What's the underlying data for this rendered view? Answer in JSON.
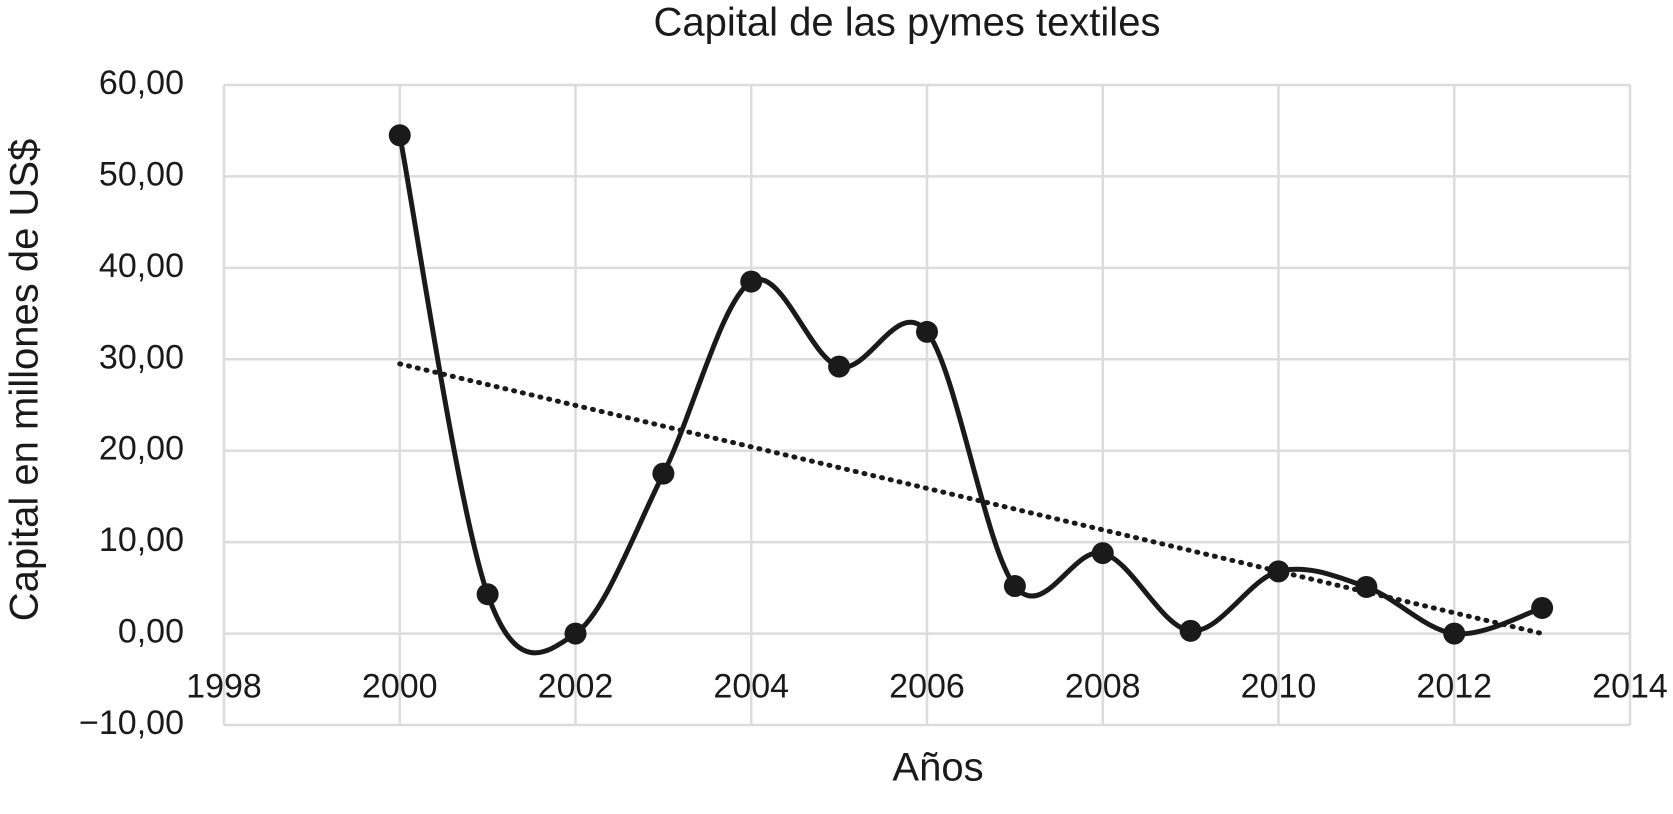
{
  "chart_data": {
    "type": "line",
    "title": "Capital de las pymes textiles",
    "x_label": "Años",
    "y_label": "Capital en millones de US$",
    "x": [
      2000,
      2001,
      2002,
      2003,
      2004,
      2005,
      2006,
      2007,
      2008,
      2009,
      2010,
      2011,
      2012,
      2013
    ],
    "series": [
      {
        "color": "#1a1a1a",
        "values": [
          54.5,
          4.3,
          0,
          17.5,
          38.5,
          29.2,
          33,
          5.2,
          8.8,
          0.3,
          6.8,
          5.1,
          0,
          2.8
        ]
      }
    ],
    "trendline": {
      "x": [
        2000,
        2013
      ],
      "values": [
        29.5,
        0
      ],
      "color": "#1a1a1a"
    },
    "smooth": true,
    "xlim": [
      1998,
      2014
    ],
    "xticks": [
      1998,
      2000,
      2002,
      2004,
      2006,
      2008,
      2010,
      2012,
      2014
    ],
    "ylim": [
      -10,
      60
    ],
    "yticks": [
      {
        "value": -10,
        "label": "−10,00"
      },
      {
        "value": 0,
        "label": "0,00"
      },
      {
        "value": 10,
        "label": "10,00"
      },
      {
        "value": 20,
        "label": "20,00"
      },
      {
        "value": 30,
        "label": "30,00"
      },
      {
        "value": 40,
        "label": "40,00"
      },
      {
        "value": 50,
        "label": "50,00"
      },
      {
        "value": 60,
        "label": "60,00"
      }
    ],
    "grid": true
  }
}
